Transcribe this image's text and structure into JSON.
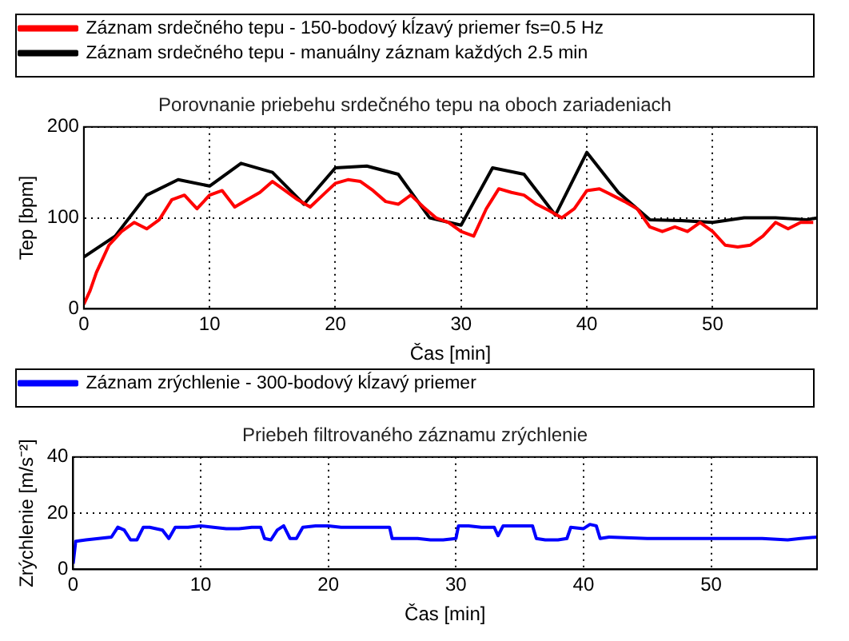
{
  "chart_data": [
    {
      "type": "line",
      "title": "Porovnanie priebehu srdečného tepu na oboch zariadeniach",
      "xlabel": "Čas [min]",
      "ylabel": "Tep [bpm]",
      "xlim": [
        0,
        58.3
      ],
      "xticks": [
        0,
        10,
        20,
        30,
        40,
        50
      ],
      "ylim": [
        0,
        200
      ],
      "yticks": [
        0,
        100,
        200
      ],
      "grid": true,
      "legend": "top",
      "marker": "none",
      "series": [
        {
          "name": "Záznam srdečného tepu - 150-bodový kĺzavý priemer fs=0.5 Hz",
          "color": "#ff0000",
          "x": [
            0,
            0.5,
            1,
            2,
            3,
            4,
            5,
            6,
            7,
            8,
            9,
            10,
            11,
            12,
            13,
            14,
            15,
            16,
            17,
            18,
            19,
            20,
            21,
            22,
            23,
            24,
            25,
            26,
            27,
            28,
            29,
            30,
            31,
            32,
            33,
            34,
            35,
            36,
            37,
            38,
            39,
            40,
            41,
            42,
            43,
            44,
            45,
            46,
            47,
            48,
            49,
            50,
            51,
            52,
            53,
            54,
            55,
            56,
            57,
            58
          ],
          "values": [
            5,
            20,
            40,
            70,
            85,
            95,
            88,
            98,
            120,
            125,
            110,
            125,
            130,
            112,
            120,
            128,
            140,
            130,
            120,
            112,
            125,
            138,
            142,
            140,
            130,
            118,
            115,
            125,
            112,
            100,
            95,
            85,
            80,
            110,
            132,
            128,
            125,
            115,
            108,
            100,
            110,
            130,
            132,
            125,
            118,
            110,
            90,
            85,
            90,
            85,
            95,
            85,
            70,
            68,
            70,
            80,
            95,
            88,
            95,
            95
          ]
        },
        {
          "name": "Záznam srdečného tepu - manuálny záznam každých 2.5 min",
          "color": "#000000",
          "x": [
            0,
            2.5,
            5,
            7.5,
            10,
            12.5,
            15,
            17.5,
            20,
            22.5,
            25,
            27.5,
            30,
            32.5,
            35,
            37.5,
            40,
            42.5,
            45,
            47.5,
            50,
            52.5,
            55,
            57.5,
            58.3
          ],
          "values": [
            57,
            80,
            125,
            142,
            135,
            160,
            150,
            115,
            155,
            157,
            148,
            100,
            92,
            155,
            148,
            103,
            172,
            128,
            98,
            97,
            95,
            100,
            100,
            98,
            100
          ]
        }
      ]
    },
    {
      "type": "line",
      "title": "Priebeh filtrovaného záznamu zrýchlenie",
      "xlabel": "Čas [min]",
      "ylabel": "Zrýchlenie [m/s⁻²]",
      "xlim": [
        0,
        58.3
      ],
      "xticks": [
        0,
        10,
        20,
        30,
        40,
        50
      ],
      "ylim": [
        0,
        40
      ],
      "yticks": [
        0,
        20,
        40
      ],
      "grid": true,
      "legend": "top",
      "marker": "none",
      "series": [
        {
          "name": "Záznam zrýchlenie - 300-bodový kĺzavý priemer",
          "color": "#0000ff",
          "x": [
            0,
            0.2,
            1,
            2,
            3,
            3.5,
            4,
            4.5,
            5,
            5.5,
            6,
            7,
            7.5,
            8,
            9,
            10,
            11,
            12,
            13,
            14,
            14.7,
            15,
            15.5,
            16,
            16.5,
            17,
            17.5,
            18,
            19,
            20,
            21,
            22,
            23,
            24,
            24.8,
            25,
            26,
            27,
            28,
            29,
            30,
            30.2,
            31,
            32,
            33,
            33.3,
            33.7,
            35,
            36,
            36.3,
            37,
            38,
            38.7,
            39,
            40,
            40.5,
            41,
            41.3,
            42,
            45,
            48,
            50,
            52,
            54,
            56,
            57,
            58.3
          ],
          "values": [
            2,
            10,
            10.5,
            11,
            11.5,
            15,
            14,
            10.5,
            10.5,
            15,
            15,
            14,
            11,
            15,
            15,
            15.5,
            15,
            14.5,
            14.5,
            15,
            15,
            11,
            10.5,
            14,
            15.5,
            11,
            11,
            15,
            15.5,
            15.5,
            15,
            15,
            15,
            15,
            15,
            11,
            11,
            11,
            10.5,
            10.5,
            11,
            15.5,
            15.5,
            15,
            15,
            12,
            15.5,
            15.5,
            15.5,
            11,
            10.5,
            10.5,
            11,
            15,
            14.5,
            16,
            15.5,
            11,
            11.5,
            11,
            11,
            11,
            11,
            11,
            10.5,
            11,
            11.5
          ]
        }
      ]
    }
  ]
}
